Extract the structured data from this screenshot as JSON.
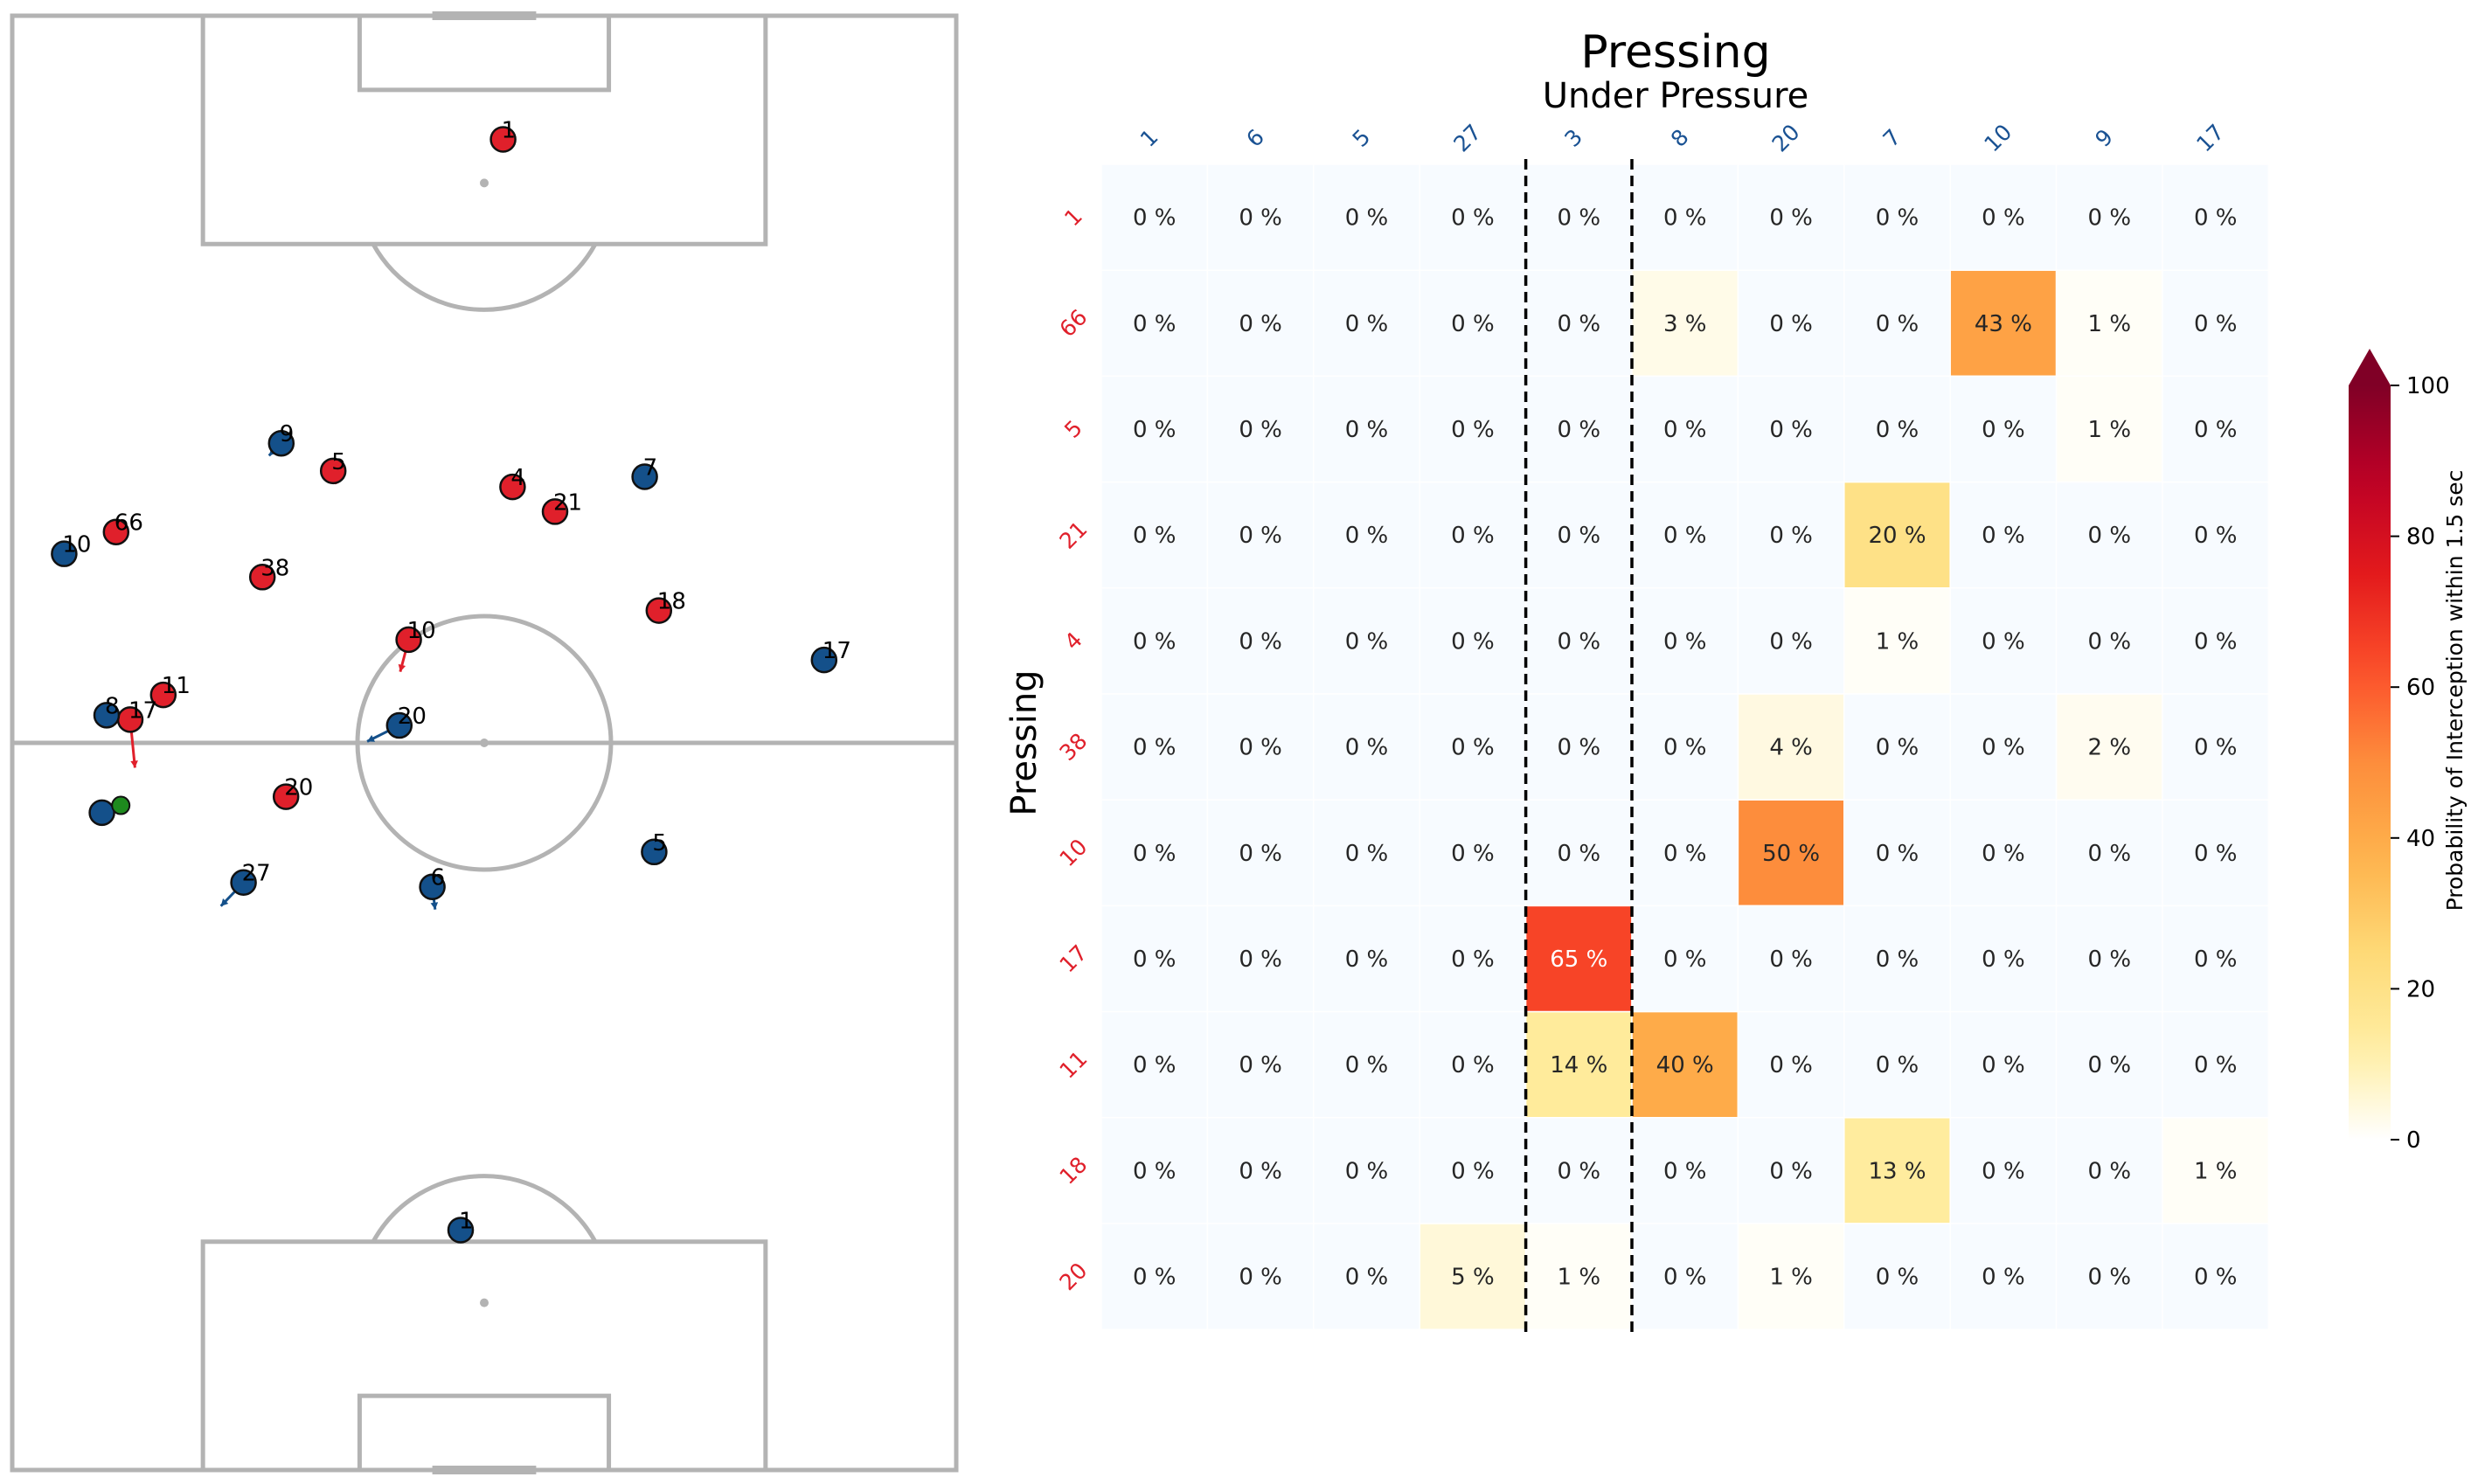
{
  "pitch": {
    "players": [
      {
        "team": "red",
        "number": "1",
        "x": 52,
        "y": 91.5,
        "dx": 0,
        "dy": 0
      },
      {
        "team": "red",
        "number": "66",
        "x": 11,
        "y": 64.5,
        "dx": 0,
        "dy": 0
      },
      {
        "team": "red",
        "number": "5",
        "x": 34,
        "y": 68.7,
        "dx": 0.3,
        "dy": -1.4
      },
      {
        "team": "red",
        "number": "38",
        "x": 26.5,
        "y": 61.4,
        "dx": 0,
        "dy": 0
      },
      {
        "team": "red",
        "number": "4",
        "x": 53,
        "y": 67.6,
        "dx": 0,
        "dy": 0
      },
      {
        "team": "red",
        "number": "21",
        "x": 57.5,
        "y": 65.9,
        "dx": 0,
        "dy": 0
      },
      {
        "team": "red",
        "number": "18",
        "x": 68.5,
        "y": 59.1,
        "dx": 0,
        "dy": 0
      },
      {
        "team": "red",
        "number": "10",
        "x": 42,
        "y": 57.1,
        "dx": -0.9,
        "dy": -3.4
      },
      {
        "team": "red",
        "number": "11",
        "x": 16,
        "y": 53.3,
        "dx": 0,
        "dy": 0
      },
      {
        "team": "red",
        "number": "17",
        "x": 12.5,
        "y": 51.6,
        "dx": 0.5,
        "dy": -5.1
      },
      {
        "team": "red",
        "number": "20",
        "x": 29,
        "y": 46.3,
        "dx": 0,
        "dy": -1.3
      },
      {
        "team": "blue",
        "number": "9",
        "x": 28.5,
        "y": 70.6,
        "dx": -1.3,
        "dy": -1.3
      },
      {
        "team": "blue",
        "number": "10",
        "x": 5.5,
        "y": 63.0,
        "dx": 0,
        "dy": 0
      },
      {
        "team": "blue",
        "number": "7",
        "x": 67,
        "y": 68.3,
        "dx": 0,
        "dy": 0
      },
      {
        "team": "blue",
        "number": "8",
        "x": 10,
        "y": 51.9,
        "dx": 0,
        "dy": 0
      },
      {
        "team": "blue",
        "number": "20",
        "x": 41,
        "y": 51.2,
        "dx": -3.4,
        "dy": -1.7
      },
      {
        "team": "blue",
        "number": "17",
        "x": 86,
        "y": 55.7,
        "dx": 0,
        "dy": 0
      },
      {
        "team": "blue",
        "number": "",
        "x": 9.5,
        "y": 45.2,
        "dx": 0,
        "dy": 0
      },
      {
        "team": "blue",
        "number": "5",
        "x": 68,
        "y": 42.5,
        "dx": 0,
        "dy": 0
      },
      {
        "team": "blue",
        "number": "27",
        "x": 24.5,
        "y": 40.4,
        "dx": -2.4,
        "dy": -2.5
      },
      {
        "team": "blue",
        "number": "6",
        "x": 44.5,
        "y": 40.1,
        "dx": 0.3,
        "dy": -2.4
      },
      {
        "team": "blue",
        "number": "1",
        "x": 47.5,
        "y": 16.5,
        "dx": 0,
        "dy": 0
      }
    ],
    "ball": {
      "x": 11.5,
      "y": 45.7
    }
  },
  "chart_data": {
    "type": "heatmap",
    "title": "Pressing",
    "subtitle": "Under Pressure",
    "xlabel": "",
    "ylabel": "Pressing",
    "x_categories": [
      "1",
      "6",
      "5",
      "27",
      "3",
      "8",
      "20",
      "7",
      "10",
      "9",
      "17"
    ],
    "y_categories": [
      "1",
      "66",
      "5",
      "21",
      "4",
      "38",
      "10",
      "17",
      "11",
      "18",
      "20"
    ],
    "values": [
      [
        0,
        0,
        0,
        0,
        0,
        0,
        0,
        0,
        0,
        0,
        0
      ],
      [
        0,
        0,
        0,
        0,
        0,
        3,
        0,
        0,
        43,
        1,
        0
      ],
      [
        0,
        0,
        0,
        0,
        0,
        0,
        0,
        0,
        0,
        1,
        0
      ],
      [
        0,
        0,
        0,
        0,
        0,
        0,
        0,
        20,
        0,
        0,
        0
      ],
      [
        0,
        0,
        0,
        0,
        0,
        0,
        0,
        1,
        0,
        0,
        0
      ],
      [
        0,
        0,
        0,
        0,
        0,
        0,
        4,
        0,
        0,
        2,
        0
      ],
      [
        0,
        0,
        0,
        0,
        0,
        0,
        50,
        0,
        0,
        0,
        0
      ],
      [
        0,
        0,
        0,
        0,
        65,
        0,
        0,
        0,
        0,
        0,
        0
      ],
      [
        0,
        0,
        0,
        0,
        14,
        40,
        0,
        0,
        0,
        0,
        0
      ],
      [
        0,
        0,
        0,
        0,
        0,
        0,
        0,
        13,
        0,
        0,
        1
      ],
      [
        0,
        0,
        0,
        5,
        1,
        0,
        1,
        0,
        0,
        0,
        0
      ]
    ],
    "value_suffix": " %",
    "dashed_column_bounds": [
      "3"
    ],
    "colorbar": {
      "label": "Probability of Interception within 1.5 sec",
      "min": 0,
      "max": 100,
      "ticks": [
        0,
        20,
        40,
        60,
        80,
        100
      ],
      "colormap": "YlOrRd",
      "extend": "max"
    },
    "colors": {
      "x_tick": "#1a5293",
      "y_tick": "#e0202b",
      "red_team": "#e0202b",
      "blue_team": "#14508a",
      "ball": "#1e8a1e",
      "pitch_line": "#b3b3b3"
    }
  }
}
